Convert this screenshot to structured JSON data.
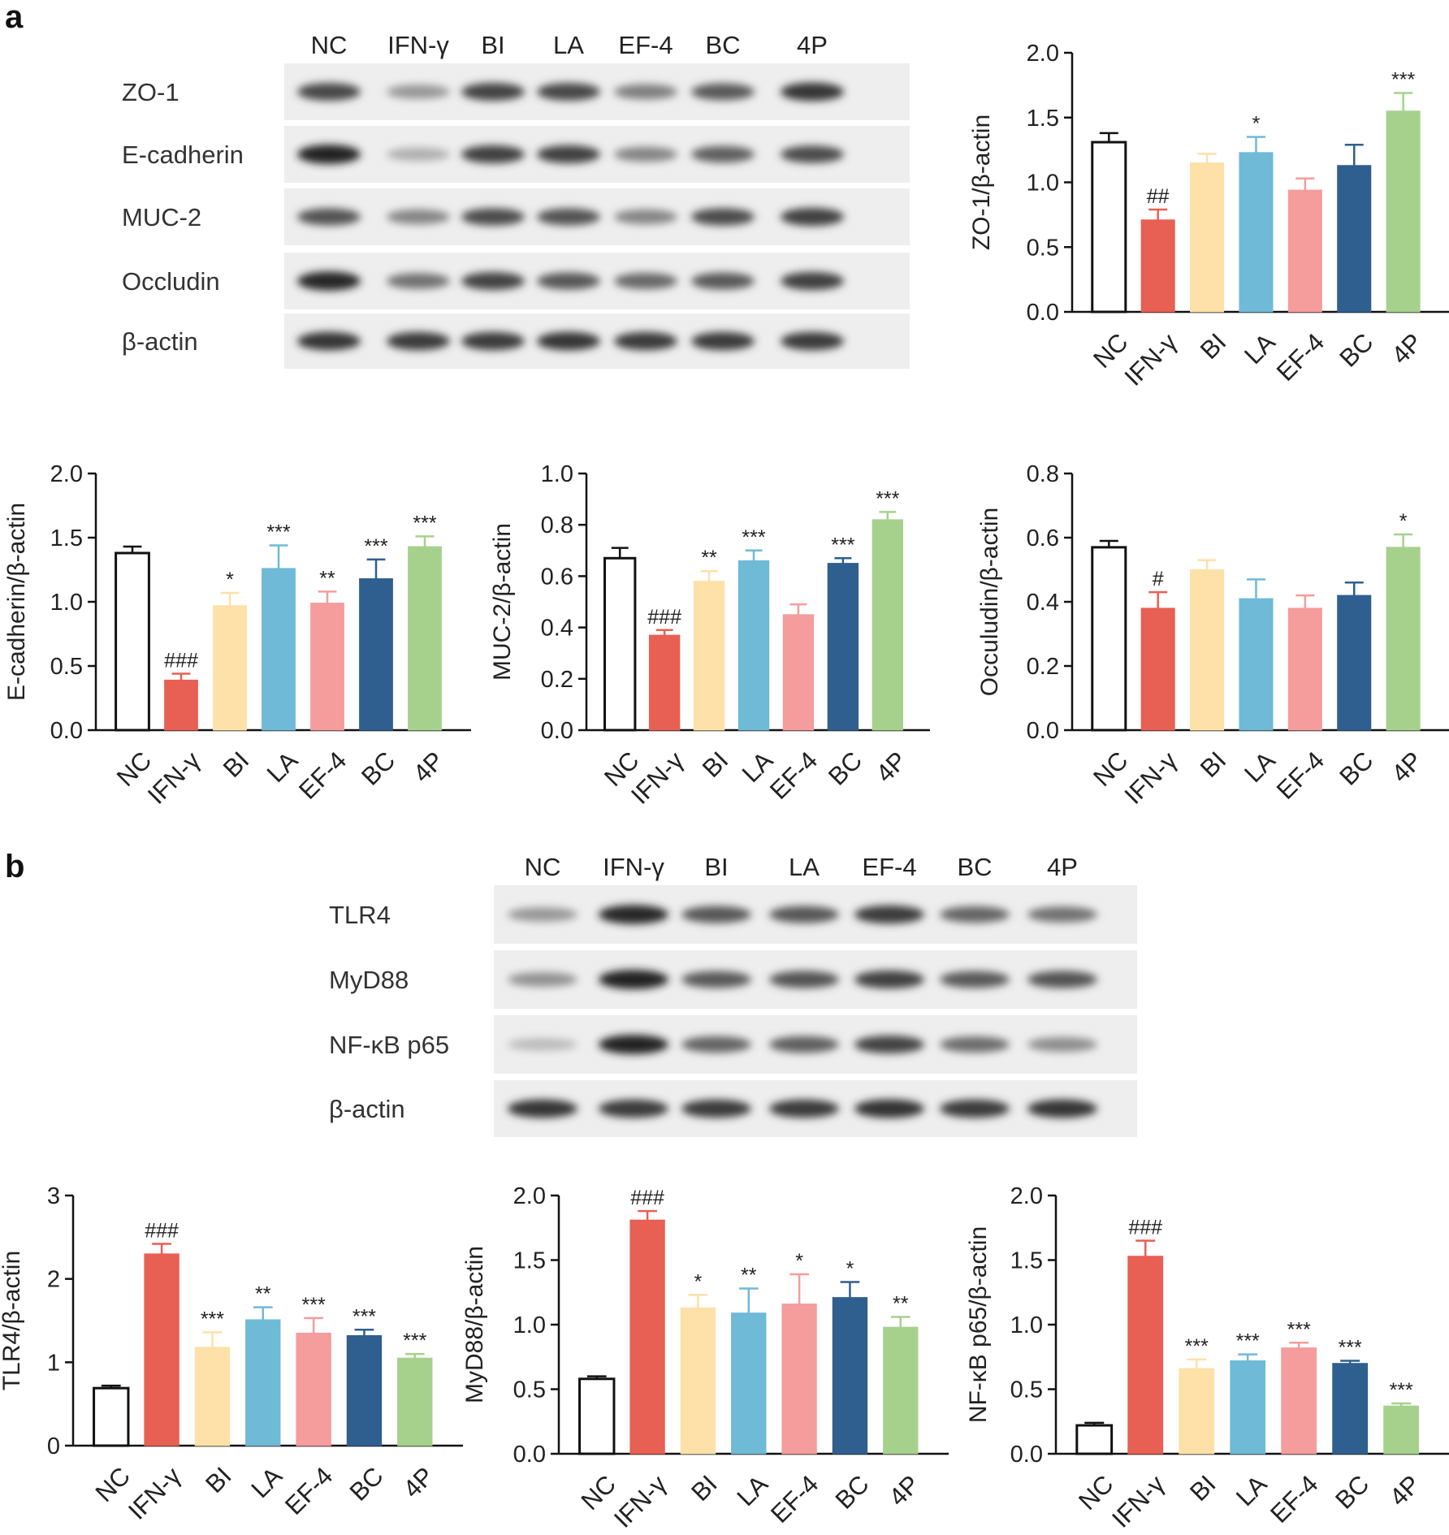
{
  "panels": {
    "a": "a",
    "b": "b"
  },
  "colors": {
    "NC": "#ffffff",
    "IFN-γ": "#e76053",
    "BI": "#fde1a8",
    "LA": "#6fbad6",
    "EF-4": "#f59c9c",
    "BC": "#2f5f8e",
    "4P": "#a6d18c"
  },
  "blot_a": {
    "lanes": [
      "NC",
      "IFN-γ",
      "BI",
      "LA",
      "EF-4",
      "BC",
      "4P"
    ],
    "rows": [
      "ZO-1",
      "E-cadherin",
      "MUC-2",
      "Occludin",
      "β-actin"
    ]
  },
  "blot_b": {
    "lanes": [
      "NC",
      "IFN-γ",
      "BI",
      "LA",
      "EF-4",
      "BC",
      "4P"
    ],
    "rows": [
      "TLR4",
      "MyD88",
      "NF-κB p65",
      "β-actin"
    ]
  },
  "chart_data": [
    {
      "id": "zo1",
      "type": "bar",
      "categories": [
        "NC",
        "IFN-γ",
        "BI",
        "LA",
        "EF-4",
        "BC",
        "4P"
      ],
      "values": [
        1.31,
        0.71,
        1.15,
        1.23,
        0.94,
        1.13,
        1.55
      ],
      "errors": [
        0.07,
        0.08,
        0.07,
        0.12,
        0.09,
        0.16,
        0.14
      ],
      "annotations": [
        "",
        "##",
        "",
        "*",
        "",
        "",
        "***"
      ],
      "ylabel": "ZO-1/β-actin",
      "ylim": [
        0,
        2.0
      ],
      "yticks": [
        "0.0",
        "0.5",
        "1.0",
        "1.5",
        "2.0"
      ]
    },
    {
      "id": "ecad",
      "type": "bar",
      "categories": [
        "NC",
        "IFN-γ",
        "BI",
        "LA",
        "EF-4",
        "BC",
        "4P"
      ],
      "values": [
        1.38,
        0.39,
        0.97,
        1.26,
        0.99,
        1.18,
        1.43
      ],
      "errors": [
        0.05,
        0.05,
        0.1,
        0.18,
        0.09,
        0.15,
        0.08
      ],
      "annotations": [
        "",
        "###",
        "*",
        "***",
        "**",
        "***",
        "***"
      ],
      "ylabel": "E-cadherin/β-actin",
      "ylim": [
        0,
        2.0
      ],
      "yticks": [
        "0.0",
        "0.5",
        "1.0",
        "1.5",
        "2.0"
      ]
    },
    {
      "id": "muc2",
      "type": "bar",
      "categories": [
        "NC",
        "IFN-γ",
        "BI",
        "LA",
        "EF-4",
        "BC",
        "4P"
      ],
      "values": [
        0.67,
        0.37,
        0.58,
        0.66,
        0.45,
        0.65,
        0.82
      ],
      "errors": [
        0.04,
        0.02,
        0.04,
        0.04,
        0.04,
        0.02,
        0.03
      ],
      "annotations": [
        "",
        "###",
        "**",
        "***",
        "",
        "***",
        "***"
      ],
      "ylabel": "MUC-2/β-actin",
      "ylim": [
        0,
        1.0
      ],
      "yticks": [
        "0.0",
        "0.2",
        "0.4",
        "0.6",
        "0.8",
        "1.0"
      ]
    },
    {
      "id": "occludin",
      "type": "bar",
      "categories": [
        "NC",
        "IFN-γ",
        "BI",
        "LA",
        "EF-4",
        "BC",
        "4P"
      ],
      "values": [
        0.57,
        0.38,
        0.5,
        0.41,
        0.38,
        0.42,
        0.57
      ],
      "errors": [
        0.02,
        0.05,
        0.03,
        0.06,
        0.04,
        0.04,
        0.04
      ],
      "annotations": [
        "",
        "#",
        "",
        "",
        "",
        "",
        "*"
      ],
      "ylabel": "Occuludin/β-actin",
      "ylim": [
        0,
        0.8
      ],
      "yticks": [
        "0.0",
        "0.2",
        "0.4",
        "0.6",
        "0.8"
      ]
    },
    {
      "id": "tlr4",
      "type": "bar",
      "categories": [
        "NC",
        "IFN-γ",
        "BI",
        "LA",
        "EF-4",
        "BC",
        "4P"
      ],
      "values": [
        0.69,
        2.3,
        1.18,
        1.51,
        1.35,
        1.32,
        1.05
      ],
      "errors": [
        0.03,
        0.12,
        0.18,
        0.15,
        0.18,
        0.07,
        0.05
      ],
      "annotations": [
        "",
        "###",
        "***",
        "**",
        "***",
        "***",
        "***"
      ],
      "ylabel": "TLR4/β-actin",
      "ylim": [
        0,
        3
      ],
      "yticks": [
        "0",
        "1",
        "2",
        "3"
      ]
    },
    {
      "id": "myd88",
      "type": "bar",
      "categories": [
        "NC",
        "IFN-γ",
        "BI",
        "LA",
        "EF-4",
        "BC",
        "4P"
      ],
      "values": [
        0.58,
        1.81,
        1.13,
        1.09,
        1.16,
        1.21,
        0.98
      ],
      "errors": [
        0.02,
        0.07,
        0.1,
        0.19,
        0.23,
        0.12,
        0.08
      ],
      "annotations": [
        "",
        "###",
        "*",
        "**",
        "*",
        "*",
        "**"
      ],
      "ylabel": "MyD88/β-actin",
      "ylim": [
        0,
        2.0
      ],
      "yticks": [
        "0.0",
        "0.5",
        "1.0",
        "1.5",
        "2.0"
      ]
    },
    {
      "id": "nfkb",
      "type": "bar",
      "categories": [
        "NC",
        "IFN-γ",
        "BI",
        "LA",
        "EF-4",
        "BC",
        "4P"
      ],
      "values": [
        0.22,
        1.53,
        0.66,
        0.72,
        0.82,
        0.7,
        0.37
      ],
      "errors": [
        0.02,
        0.12,
        0.07,
        0.05,
        0.04,
        0.02,
        0.02
      ],
      "annotations": [
        "",
        "###",
        "***",
        "***",
        "***",
        "***",
        "***"
      ],
      "ylabel": "NF-κB p65/β-actin",
      "ylim": [
        0,
        2.0
      ],
      "yticks": [
        "0.0",
        "0.5",
        "1.0",
        "1.5",
        "2.0"
      ]
    }
  ]
}
